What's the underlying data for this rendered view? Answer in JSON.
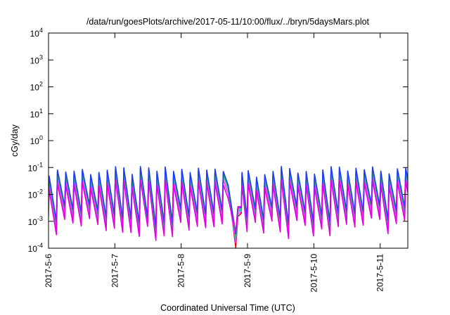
{
  "chart_data": {
    "type": "line",
    "title": "/data/run/goesPlots/archive/2017-05-11/10:00/flux/../bryn/5daysMars.plot",
    "xlabel": "Coordinated Universal Time (UTC)",
    "ylabel": "cGy/day",
    "yscale": "log",
    "ylim": [
      0.0001,
      10000
    ],
    "xlim": [
      "2017-05-06 00:00",
      "2017-05-11 10:00"
    ],
    "grid": false,
    "legend": "none",
    "y_tick_exponents": [
      "-4",
      "-3",
      "-2",
      "-1",
      "0",
      "1",
      "2",
      "3",
      "4"
    ],
    "y_tick_base": "10",
    "x_ticks": [
      "2017-5-6",
      "2017-5-7",
      "2017-5-8",
      "2017-5-9",
      "2017-5-10",
      "2017-5-11"
    ],
    "pattern": {
      "description_values_in_data_units": true,
      "cycle_hours": 3,
      "peak_value_range": [
        0.04,
        0.1
      ],
      "trough_value_range": [
        0.0005,
        0.004
      ],
      "gap_dip": {
        "start": "2017-05-08 17:00",
        "end": "2017-05-08 22:00",
        "min_value": 0.0001
      },
      "low_bump": {
        "at": "2017-05-07 07:00",
        "value": 0.001
      }
    },
    "series": [
      {
        "color": "#e00000",
        "scale": 1.0
      },
      {
        "color": "#ff30ff",
        "scale": 0.55
      },
      {
        "color": "#00bfbf",
        "scale": 0.8
      },
      {
        "color": "#40c040",
        "scale": 0.9
      },
      {
        "color": "#1a3cff",
        "scale": 1.1
      },
      {
        "color": "#e000e0",
        "scale": 0.35
      }
    ]
  }
}
